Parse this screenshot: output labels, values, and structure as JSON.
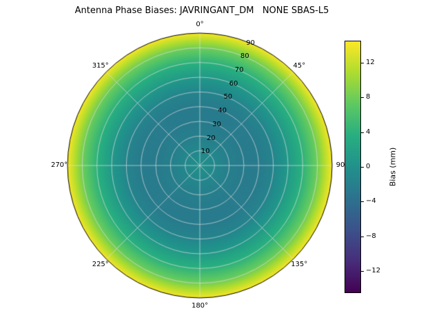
{
  "title": "Antenna Phase Biases: JAVRINGANT_DM   NONE SBAS-L5",
  "polar": {
    "angular_tick_labels": [
      "0°",
      "45°",
      "90",
      "135°",
      "180°",
      "225°",
      "270°",
      "315°"
    ],
    "angular_tick_degrees": [
      0,
      45,
      90,
      135,
      180,
      225,
      270,
      315
    ],
    "radial_tick_labels": [
      "10",
      "20",
      "30",
      "40",
      "50",
      "60",
      "70",
      "80",
      "90"
    ],
    "radial_tick_values": [
      10,
      20,
      30,
      40,
      50,
      60,
      70,
      80,
      90
    ],
    "r_max": 90,
    "radial_label_angle_deg": 22.5,
    "grid_color": "rgba(225,225,225,0.85)"
  },
  "colorbar": {
    "label": "Bias (mm)",
    "tick_labels": [
      "12",
      "8",
      "4",
      "0",
      "−4",
      "−8",
      "−12"
    ],
    "tick_values": [
      12,
      8,
      4,
      0,
      -4,
      -8,
      -12
    ],
    "vmin": -14.5,
    "vmax": 14.5
  },
  "colormap": {
    "name": "viridis",
    "stops": [
      [
        0,
        "#440154"
      ],
      [
        0.125,
        "#472d7b"
      ],
      [
        0.25,
        "#3b528b"
      ],
      [
        0.375,
        "#2c728e"
      ],
      [
        0.5,
        "#21918c"
      ],
      [
        0.625,
        "#28ae80"
      ],
      [
        0.75,
        "#5ec962"
      ],
      [
        0.875,
        "#addc30"
      ],
      [
        1,
        "#fde725"
      ]
    ]
  },
  "chart_data": {
    "type": "heatmap",
    "projection": "polar",
    "title": "Antenna Phase Biases: JAVRINGANT_DM   NONE SBAS-L5",
    "radial_axis": "zenith angle (deg), 0 at center to 90 at edge",
    "angular_axis": "azimuth (deg), 0 at top, clockwise",
    "colorbar_label": "Bias (mm)",
    "azimuth_symmetric": true,
    "zenith": [
      0,
      10,
      20,
      30,
      40,
      50,
      60,
      70,
      80,
      85,
      90
    ],
    "bias_profile_mm": [
      0,
      -1,
      -2,
      -2.5,
      -2.5,
      -1.5,
      1,
      4,
      8,
      11,
      14
    ],
    "vmin": -14.5,
    "vmax": 14.5,
    "legend_position": "right-colorbar",
    "grid": true
  }
}
